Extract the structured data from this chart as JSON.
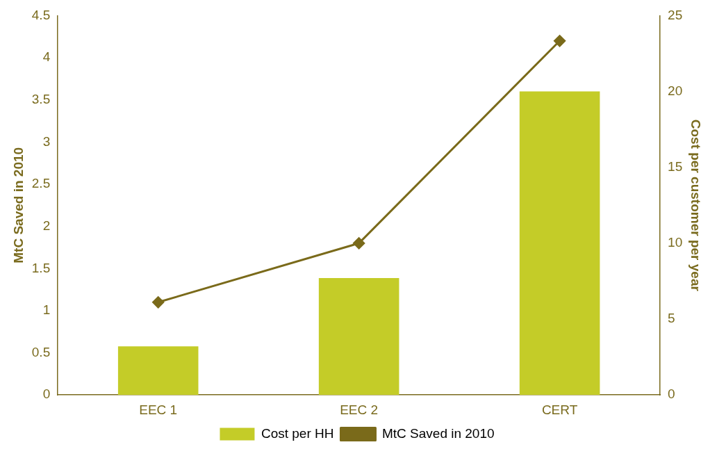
{
  "chart_data": {
    "type": "bar",
    "categories": [
      "EEC 1",
      "EEC 2",
      "CERT"
    ],
    "ylabel": "MtC Saved in 2010",
    "y2label": "Cost per customer per year",
    "ylim": [
      0,
      4.5
    ],
    "yticks": [
      0,
      0.5,
      1,
      1.5,
      2,
      2.5,
      3,
      3.5,
      4,
      4.5
    ],
    "y2lim": [
      0,
      25
    ],
    "y2ticks": [
      0,
      5,
      10,
      15,
      20,
      25
    ],
    "series": [
      {
        "name": "Cost per HH",
        "axis": "y2",
        "color": "#c4cc28",
        "values": [
          3.2,
          7.7,
          20
        ]
      },
      {
        "name": "MtC Saved in 2010",
        "type": "line",
        "axis": "y",
        "color": "#7a6a1a",
        "values": [
          1.1,
          1.8,
          4.2
        ],
        "marker": "diamond"
      }
    ],
    "grid": false,
    "legend": "bottom"
  }
}
